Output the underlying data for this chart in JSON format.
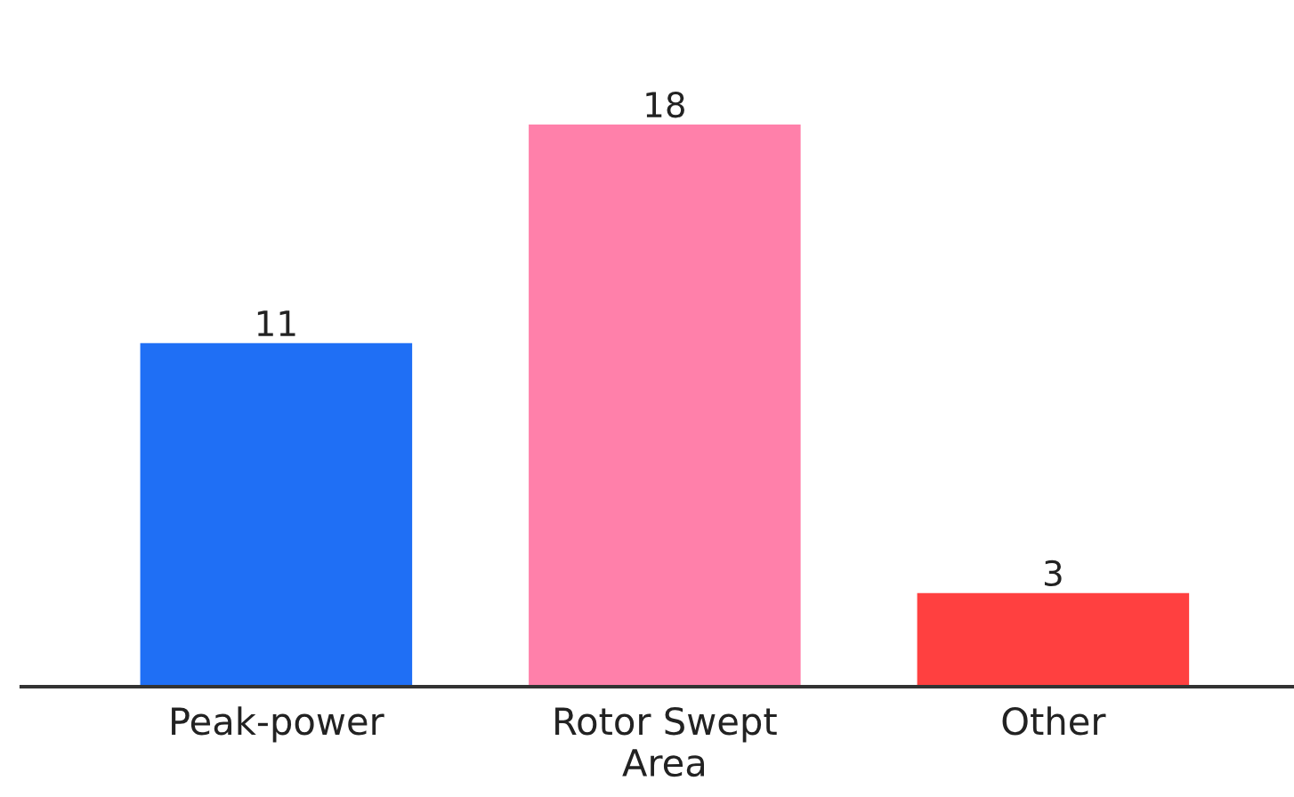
{
  "chart_data": {
    "type": "bar",
    "categories": [
      "Peak-power",
      "Rotor Swept Area",
      "Other"
    ],
    "values": [
      11,
      18,
      3
    ],
    "colors": [
      "#1f6ff5",
      "#ff80aa",
      "#ff4040"
    ],
    "data_labels": true
  }
}
